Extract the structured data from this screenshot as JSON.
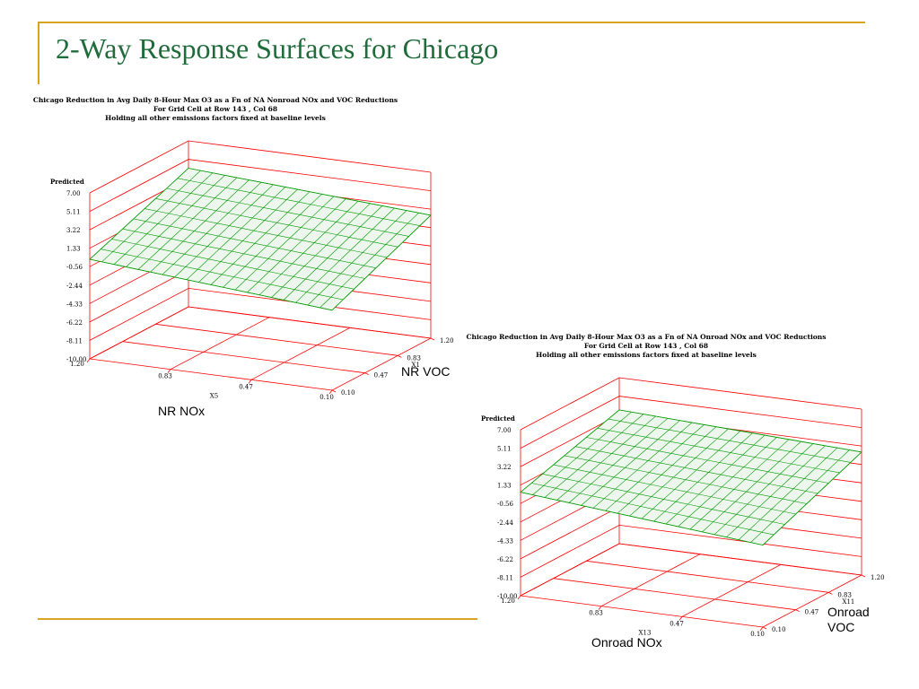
{
  "slide": {
    "title": "2-Way Response Surfaces for Chicago",
    "colors": {
      "title": "#1f6b3a",
      "rule": "#d9a520",
      "box": "#ff0000",
      "surface": "#009900"
    }
  },
  "captions": {
    "plot1_x1": "NR VOC",
    "plot1_x5": "NR NOx",
    "plot2_x11": "Onroad\nVOC",
    "plot2_x13": "Onroad NOx"
  },
  "chart_data": [
    {
      "type": "surface",
      "title": "Chicago Reduction in Avg Daily 8-Hour Max O3 as a Fn of NA Nonroad NOx and VOC Reductions",
      "subtitle": [
        "For Grid Cell at Row 143 , Col 68",
        "Holding all other emissions factors fixed at baseline levels"
      ],
      "zlabel": "Predicted",
      "zticks": [
        "7.00",
        "5.11",
        "3.22",
        "1.33",
        "-0.56",
        "-2.44",
        "-4.33",
        "-6.22",
        "-8.11",
        "-10.00"
      ],
      "zlim": [
        -10.0,
        7.0
      ],
      "xlabel": "X5",
      "xticks": [
        "1.20",
        "0.83",
        "0.47",
        "0.10"
      ],
      "xlim": [
        1.2,
        0.1
      ],
      "ylabel": "X1",
      "yticks": [
        "0.10",
        "0.47",
        "0.83",
        "1.20"
      ],
      "ylim": [
        0.1,
        1.2
      ],
      "corners_z": {
        "x1.20_y0.10": 0.2,
        "x1.20_y1.20": 4.2,
        "x0.10_y0.10": -1.8,
        "x0.10_y1.20": 2.6
      },
      "grid": {
        "x_lines": 9,
        "y_lines": 20
      }
    },
    {
      "type": "surface",
      "title": "Chicago Reduction in Avg Daily 8-Hour Max O3 as a Fn of NA Onroad NOx and VOC Reductions",
      "subtitle": [
        "For Grid Cell at Row 143 , Col 68",
        "Holding all other emissions factors fixed at baseline levels"
      ],
      "zlabel": "Predicted",
      "zticks": [
        "7.00",
        "5.11",
        "3.22",
        "1.33",
        "-0.56",
        "-2.44",
        "-4.33",
        "-6.22",
        "-8.11",
        "-10.00"
      ],
      "zlim": [
        -10.0,
        7.0
      ],
      "xlabel": "X13",
      "xticks": [
        "1.20",
        "0.83",
        "0.47",
        "0.10"
      ],
      "xlim": [
        1.2,
        0.1
      ],
      "ylabel": "X11",
      "yticks": [
        "0.10",
        "0.47",
        "0.83",
        "1.20"
      ],
      "ylim": [
        0.1,
        1.2
      ],
      "corners_z": {
        "x1.20_y0.10": 0.6,
        "x1.20_y1.20": 3.7,
        "x0.10_y0.10": -1.6,
        "x0.10_y1.20": 2.6
      },
      "grid": {
        "x_lines": 9,
        "y_lines": 20
      }
    }
  ]
}
